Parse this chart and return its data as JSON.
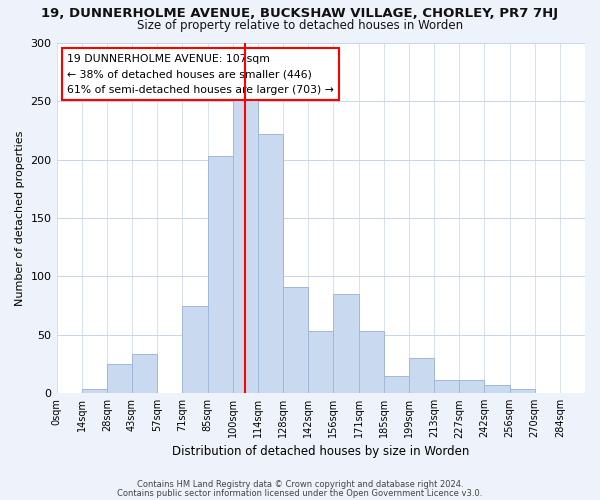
{
  "title_line1": "19, DUNNERHOLME AVENUE, BUCKSHAW VILLAGE, CHORLEY, PR7 7HJ",
  "title_line2": "Size of property relative to detached houses in Worden",
  "xlabel": "Distribution of detached houses by size in Worden",
  "ylabel": "Number of detached properties",
  "bar_labels": [
    "0sqm",
    "14sqm",
    "28sqm",
    "43sqm",
    "57sqm",
    "71sqm",
    "85sqm",
    "100sqm",
    "114sqm",
    "128sqm",
    "142sqm",
    "156sqm",
    "171sqm",
    "185sqm",
    "199sqm",
    "213sqm",
    "227sqm",
    "242sqm",
    "256sqm",
    "270sqm",
    "284sqm"
  ],
  "bar_heights": [
    0,
    4,
    25,
    34,
    0,
    75,
    203,
    252,
    222,
    91,
    53,
    85,
    53,
    15,
    30,
    11,
    11,
    7,
    4,
    0,
    0
  ],
  "bar_color": "#c9d9f0",
  "bar_edge_color": "#a0b8d8",
  "vline_x": 7,
  "vline_color": "red",
  "annotation_title": "19 DUNNERHOLME AVENUE: 107sqm",
  "annotation_line1": "← 38% of detached houses are smaller (446)",
  "annotation_line2": "61% of semi-detached houses are larger (703) →",
  "annotation_box_color": "white",
  "annotation_box_edge": "red",
  "ylim": [
    0,
    300
  ],
  "footnote1": "Contains HM Land Registry data © Crown copyright and database right 2024.",
  "footnote2": "Contains public sector information licensed under the Open Government Licence v3.0.",
  "bg_color": "#eef2fb",
  "plot_bg_color": "#ffffff",
  "grid_color": "#c8d4e8"
}
